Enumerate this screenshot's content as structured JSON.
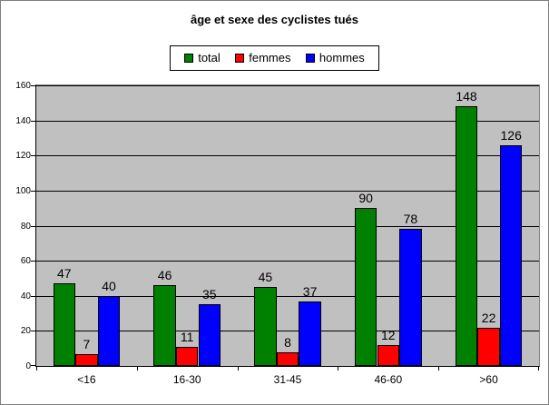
{
  "chart_data": {
    "type": "bar",
    "title": "âge et sexe des cyclistes tués",
    "categories": [
      "<16",
      "16-30",
      "31-45",
      "46-60",
      ">60"
    ],
    "series": [
      {
        "name": "total",
        "color": "#008000",
        "values": [
          47,
          46,
          45,
          90,
          148
        ]
      },
      {
        "name": "femmes",
        "color": "#ff0000",
        "values": [
          7,
          11,
          8,
          12,
          22
        ]
      },
      {
        "name": "hommes",
        "color": "#0000ff",
        "values": [
          40,
          35,
          37,
          78,
          126
        ]
      }
    ],
    "ylim": [
      0,
      160
    ],
    "ytick_step": 20,
    "ytick_labels": [
      "0",
      "20",
      "40",
      "60",
      "80",
      "100",
      "120",
      "140",
      "160"
    ],
    "grid": "horizontal",
    "gridline_color": "#000000",
    "plot_background": "#c0c0c0",
    "legend_position": "top",
    "data_labels": true,
    "gap_width_percent": 150,
    "xlabel": "",
    "ylabel": ""
  }
}
